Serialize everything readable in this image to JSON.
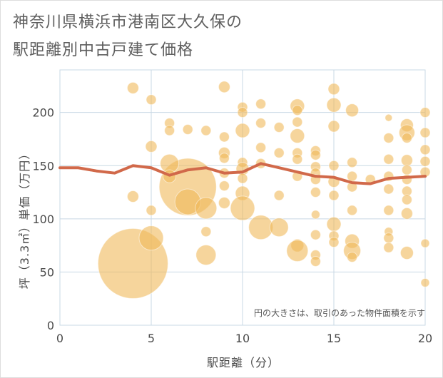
{
  "chart_data": {
    "type": "scatter",
    "title_line1": "神奈川県横浜市港南区大久保の",
    "title_line2": "駅距離別中古戸建て価格",
    "xlabel": "駅距離（分）",
    "ylabel": "坪（3.3㎡）単価（万円）",
    "note": "円の大きさは、取引のあった物件面積を示す",
    "xlim": [
      0,
      20
    ],
    "ylim": [
      0,
      240
    ],
    "xticks": [
      0,
      5,
      10,
      15,
      20
    ],
    "yticks": [
      0,
      50,
      100,
      150,
      200
    ],
    "colors": {
      "bubble": "#f0b95a",
      "line": "#d1694a",
      "grid": "#c8d8e4",
      "axis_text": "#4a4a4a"
    },
    "trend_line": {
      "x": [
        0,
        1,
        2,
        3,
        4,
        5,
        6,
        7,
        8,
        9,
        10,
        11,
        12,
        13,
        14,
        15,
        16,
        17,
        18,
        19,
        20
      ],
      "y": [
        148,
        148,
        145,
        143,
        150,
        148,
        141,
        146,
        148,
        143,
        144,
        152,
        148,
        144,
        140,
        139,
        134,
        133,
        138,
        139,
        140
      ]
    },
    "points": [
      {
        "x": 4,
        "y": 58,
        "s": 98
      },
      {
        "x": 7,
        "y": 130,
        "s": 80
      },
      {
        "x": 4,
        "y": 223,
        "s": 16
      },
      {
        "x": 4,
        "y": 121,
        "s": 16
      },
      {
        "x": 5,
        "y": 212,
        "s": 14
      },
      {
        "x": 5,
        "y": 168,
        "s": 16
      },
      {
        "x": 5,
        "y": 108,
        "s": 14
      },
      {
        "x": 5,
        "y": 82,
        "s": 34
      },
      {
        "x": 6,
        "y": 190,
        "s": 14
      },
      {
        "x": 6,
        "y": 183,
        "s": 14
      },
      {
        "x": 6,
        "y": 152,
        "s": 26
      },
      {
        "x": 6,
        "y": 140,
        "s": 18
      },
      {
        "x": 7,
        "y": 184,
        "s": 14
      },
      {
        "x": 7,
        "y": 116,
        "s": 36
      },
      {
        "x": 8,
        "y": 183,
        "s": 14
      },
      {
        "x": 8,
        "y": 110,
        "s": 30
      },
      {
        "x": 8,
        "y": 88,
        "s": 14
      },
      {
        "x": 8,
        "y": 66,
        "s": 28
      },
      {
        "x": 9,
        "y": 224,
        "s": 16
      },
      {
        "x": 9,
        "y": 177,
        "s": 14
      },
      {
        "x": 9,
        "y": 162,
        "s": 16
      },
      {
        "x": 9,
        "y": 157,
        "s": 14
      },
      {
        "x": 9,
        "y": 143,
        "s": 14
      },
      {
        "x": 9,
        "y": 131,
        "s": 14
      },
      {
        "x": 9,
        "y": 115,
        "s": 16
      },
      {
        "x": 10,
        "y": 205,
        "s": 14
      },
      {
        "x": 10,
        "y": 200,
        "s": 14
      },
      {
        "x": 10,
        "y": 183,
        "s": 20
      },
      {
        "x": 10,
        "y": 153,
        "s": 14
      },
      {
        "x": 10,
        "y": 147,
        "s": 18
      },
      {
        "x": 10,
        "y": 138,
        "s": 14
      },
      {
        "x": 10,
        "y": 124,
        "s": 20
      },
      {
        "x": 10,
        "y": 110,
        "s": 34
      },
      {
        "x": 11,
        "y": 208,
        "s": 14
      },
      {
        "x": 11,
        "y": 190,
        "s": 14
      },
      {
        "x": 11,
        "y": 167,
        "s": 14
      },
      {
        "x": 11,
        "y": 152,
        "s": 14
      },
      {
        "x": 11,
        "y": 92,
        "s": 34
      },
      {
        "x": 12,
        "y": 186,
        "s": 14
      },
      {
        "x": 12,
        "y": 162,
        "s": 14
      },
      {
        "x": 12,
        "y": 122,
        "s": 14
      },
      {
        "x": 12,
        "y": 92,
        "s": 26
      },
      {
        "x": 13,
        "y": 206,
        "s": 20
      },
      {
        "x": 13,
        "y": 202,
        "s": 14
      },
      {
        "x": 13,
        "y": 191,
        "s": 14
      },
      {
        "x": 13,
        "y": 178,
        "s": 20
      },
      {
        "x": 13,
        "y": 162,
        "s": 14
      },
      {
        "x": 13,
        "y": 156,
        "s": 14
      },
      {
        "x": 13,
        "y": 140,
        "s": 14
      },
      {
        "x": 13,
        "y": 75,
        "s": 18
      },
      {
        "x": 13,
        "y": 70,
        "s": 30
      },
      {
        "x": 14,
        "y": 164,
        "s": 14
      },
      {
        "x": 14,
        "y": 160,
        "s": 14
      },
      {
        "x": 14,
        "y": 149,
        "s": 14
      },
      {
        "x": 14,
        "y": 143,
        "s": 14
      },
      {
        "x": 14,
        "y": 137,
        "s": 14
      },
      {
        "x": 14,
        "y": 125,
        "s": 14
      },
      {
        "x": 14,
        "y": 104,
        "s": 12
      },
      {
        "x": 14,
        "y": 85,
        "s": 14
      },
      {
        "x": 14,
        "y": 66,
        "s": 14
      },
      {
        "x": 14,
        "y": 60,
        "s": 14
      },
      {
        "x": 15,
        "y": 222,
        "s": 16
      },
      {
        "x": 15,
        "y": 207,
        "s": 20
      },
      {
        "x": 15,
        "y": 187,
        "s": 16
      },
      {
        "x": 15,
        "y": 150,
        "s": 14
      },
      {
        "x": 15,
        "y": 135,
        "s": 16
      },
      {
        "x": 15,
        "y": 122,
        "s": 14
      },
      {
        "x": 15,
        "y": 95,
        "s": 20
      },
      {
        "x": 15,
        "y": 84,
        "s": 14
      },
      {
        "x": 15,
        "y": 78,
        "s": 14
      },
      {
        "x": 16,
        "y": 202,
        "s": 18
      },
      {
        "x": 16,
        "y": 153,
        "s": 14
      },
      {
        "x": 16,
        "y": 140,
        "s": 14
      },
      {
        "x": 16,
        "y": 130,
        "s": 14
      },
      {
        "x": 16,
        "y": 108,
        "s": 14
      },
      {
        "x": 16,
        "y": 79,
        "s": 20
      },
      {
        "x": 16,
        "y": 70,
        "s": 24
      },
      {
        "x": 16,
        "y": 64,
        "s": 14
      },
      {
        "x": 17,
        "y": 137,
        "s": 14
      },
      {
        "x": 18,
        "y": 195,
        "s": 10
      },
      {
        "x": 18,
        "y": 176,
        "s": 14
      },
      {
        "x": 18,
        "y": 156,
        "s": 14
      },
      {
        "x": 18,
        "y": 140,
        "s": 14
      },
      {
        "x": 18,
        "y": 128,
        "s": 14
      },
      {
        "x": 18,
        "y": 108,
        "s": 14
      },
      {
        "x": 18,
        "y": 88,
        "s": 12
      },
      {
        "x": 18,
        "y": 82,
        "s": 14
      },
      {
        "x": 18,
        "y": 73,
        "s": 14
      },
      {
        "x": 19,
        "y": 188,
        "s": 18
      },
      {
        "x": 19,
        "y": 181,
        "s": 22
      },
      {
        "x": 19,
        "y": 176,
        "s": 14
      },
      {
        "x": 19,
        "y": 155,
        "s": 16
      },
      {
        "x": 19,
        "y": 146,
        "s": 14
      },
      {
        "x": 19,
        "y": 137,
        "s": 14
      },
      {
        "x": 19,
        "y": 126,
        "s": 14
      },
      {
        "x": 19,
        "y": 118,
        "s": 14
      },
      {
        "x": 19,
        "y": 105,
        "s": 16
      },
      {
        "x": 19,
        "y": 68,
        "s": 18
      },
      {
        "x": 20,
        "y": 200,
        "s": 14
      },
      {
        "x": 20,
        "y": 181,
        "s": 14
      },
      {
        "x": 20,
        "y": 165,
        "s": 14
      },
      {
        "x": 20,
        "y": 154,
        "s": 14
      },
      {
        "x": 20,
        "y": 144,
        "s": 14
      },
      {
        "x": 20,
        "y": 77,
        "s": 12
      },
      {
        "x": 20,
        "y": 40,
        "s": 12
      }
    ]
  }
}
